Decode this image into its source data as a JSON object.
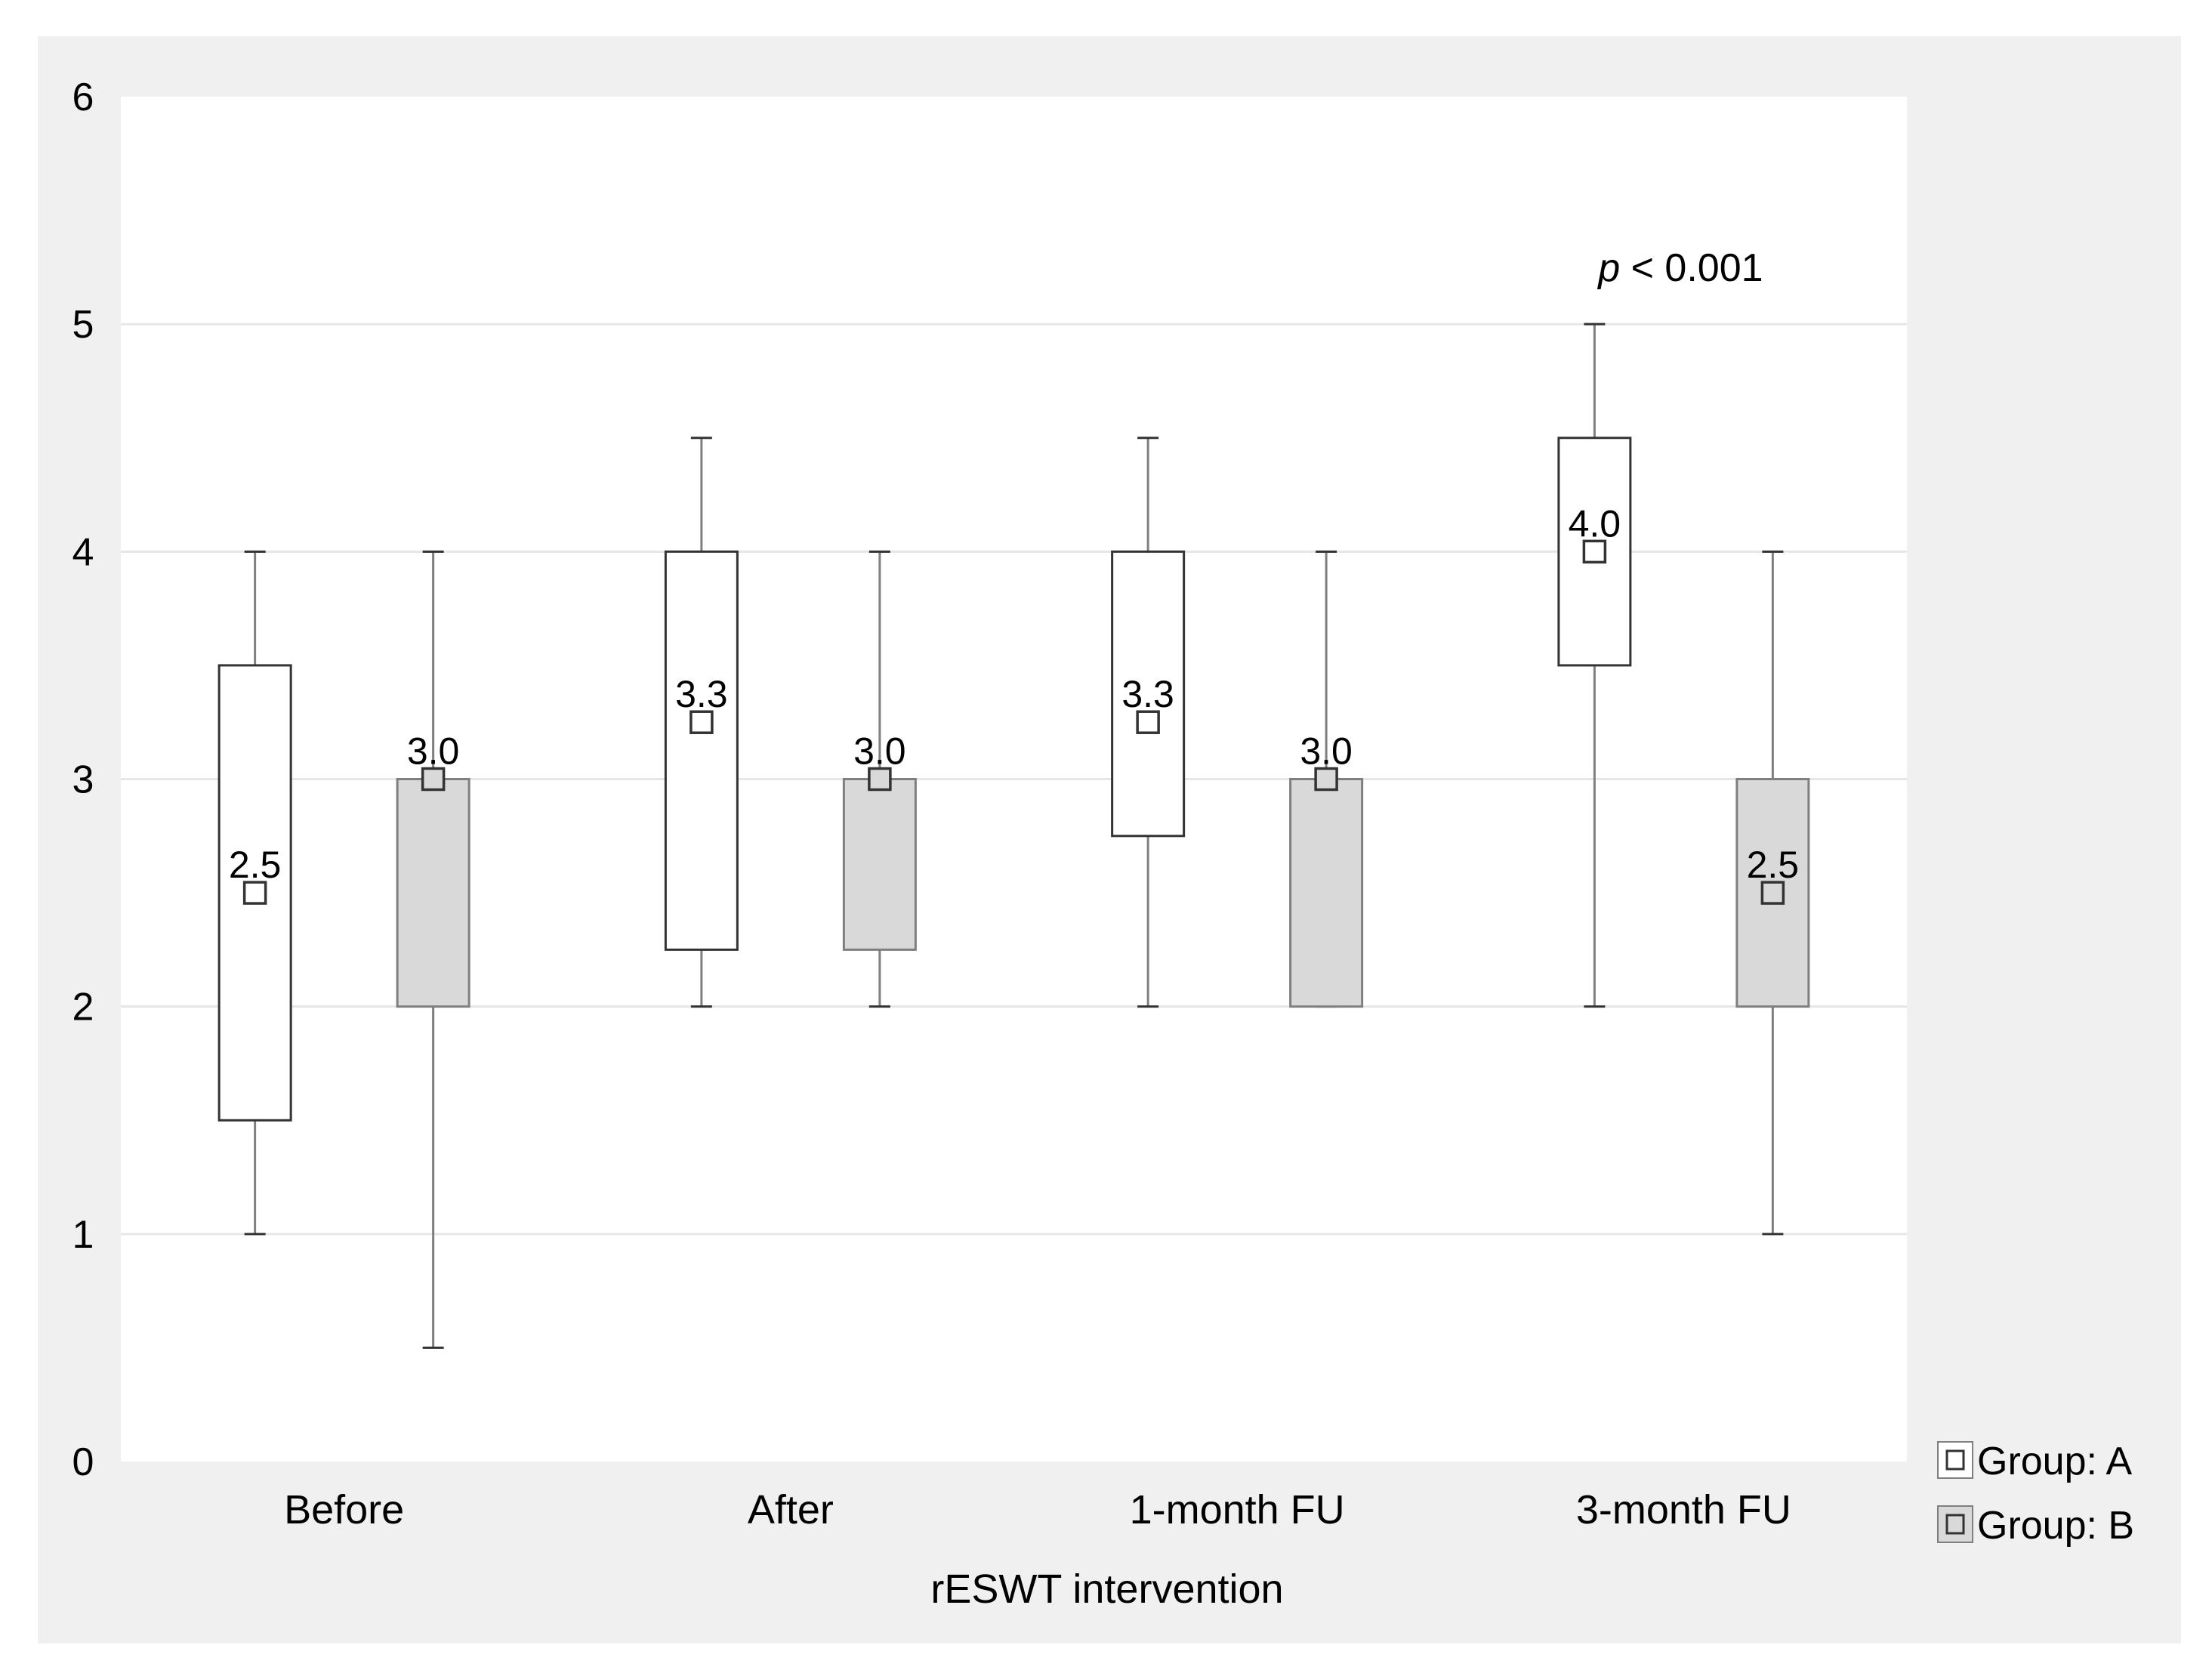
{
  "chart_data": {
    "type": "box",
    "xlabel": "rESWT intervention",
    "ylabel": "",
    "ylim": [
      0,
      6
    ],
    "yticks": [
      "0",
      "1",
      "2",
      "3",
      "4",
      "5",
      "6"
    ],
    "grid": true,
    "legend_position": "bottom-right",
    "categories": [
      "Before",
      "After",
      "1-month FU",
      "3-month FU"
    ],
    "series": [
      {
        "name": "Group: A",
        "fill": "#ffffff",
        "boxes": [
          {
            "whisker_low": 1.0,
            "q1": 1.5,
            "q3": 3.5,
            "whisker_high": 4.0,
            "median": 2.5,
            "label": "2.5"
          },
          {
            "whisker_low": 2.0,
            "q1": 2.25,
            "q3": 4.0,
            "whisker_high": 4.5,
            "median": 3.25,
            "label": "3.3"
          },
          {
            "whisker_low": 2.0,
            "q1": 2.75,
            "q3": 4.0,
            "whisker_high": 4.5,
            "median": 3.25,
            "label": "3.3"
          },
          {
            "whisker_low": 2.0,
            "q1": 3.5,
            "q3": 4.5,
            "whisker_high": 5.0,
            "median": 4.0,
            "label": "4.0"
          }
        ]
      },
      {
        "name": "Group: B",
        "fill": "#d9d9d9",
        "boxes": [
          {
            "whisker_low": 0.5,
            "q1": 2.0,
            "q3": 3.0,
            "whisker_high": 4.0,
            "median": 3.0,
            "label": "3.0"
          },
          {
            "whisker_low": 2.0,
            "q1": 2.25,
            "q3": 3.0,
            "whisker_high": 4.0,
            "median": 3.0,
            "label": "3.0"
          },
          {
            "whisker_low": 2.0,
            "q1": 2.0,
            "q3": 3.0,
            "whisker_high": 4.0,
            "median": 3.0,
            "label": "3.0"
          },
          {
            "whisker_low": 1.0,
            "q1": 2.0,
            "q3": 3.0,
            "whisker_high": 4.0,
            "median": 2.5,
            "label": "2.5"
          }
        ]
      }
    ],
    "annotations": [
      {
        "category": "3-month FU",
        "y": 5.25,
        "prefix": "p",
        "text": " < 0.001"
      }
    ],
    "colors": {
      "outer_background": "#f0f0f0",
      "plot_background": "#ffffff",
      "gridline": "#e6e6e6",
      "box_stroke": "#333333",
      "whisker": "#7f7f7f",
      "text": "#000000"
    }
  }
}
